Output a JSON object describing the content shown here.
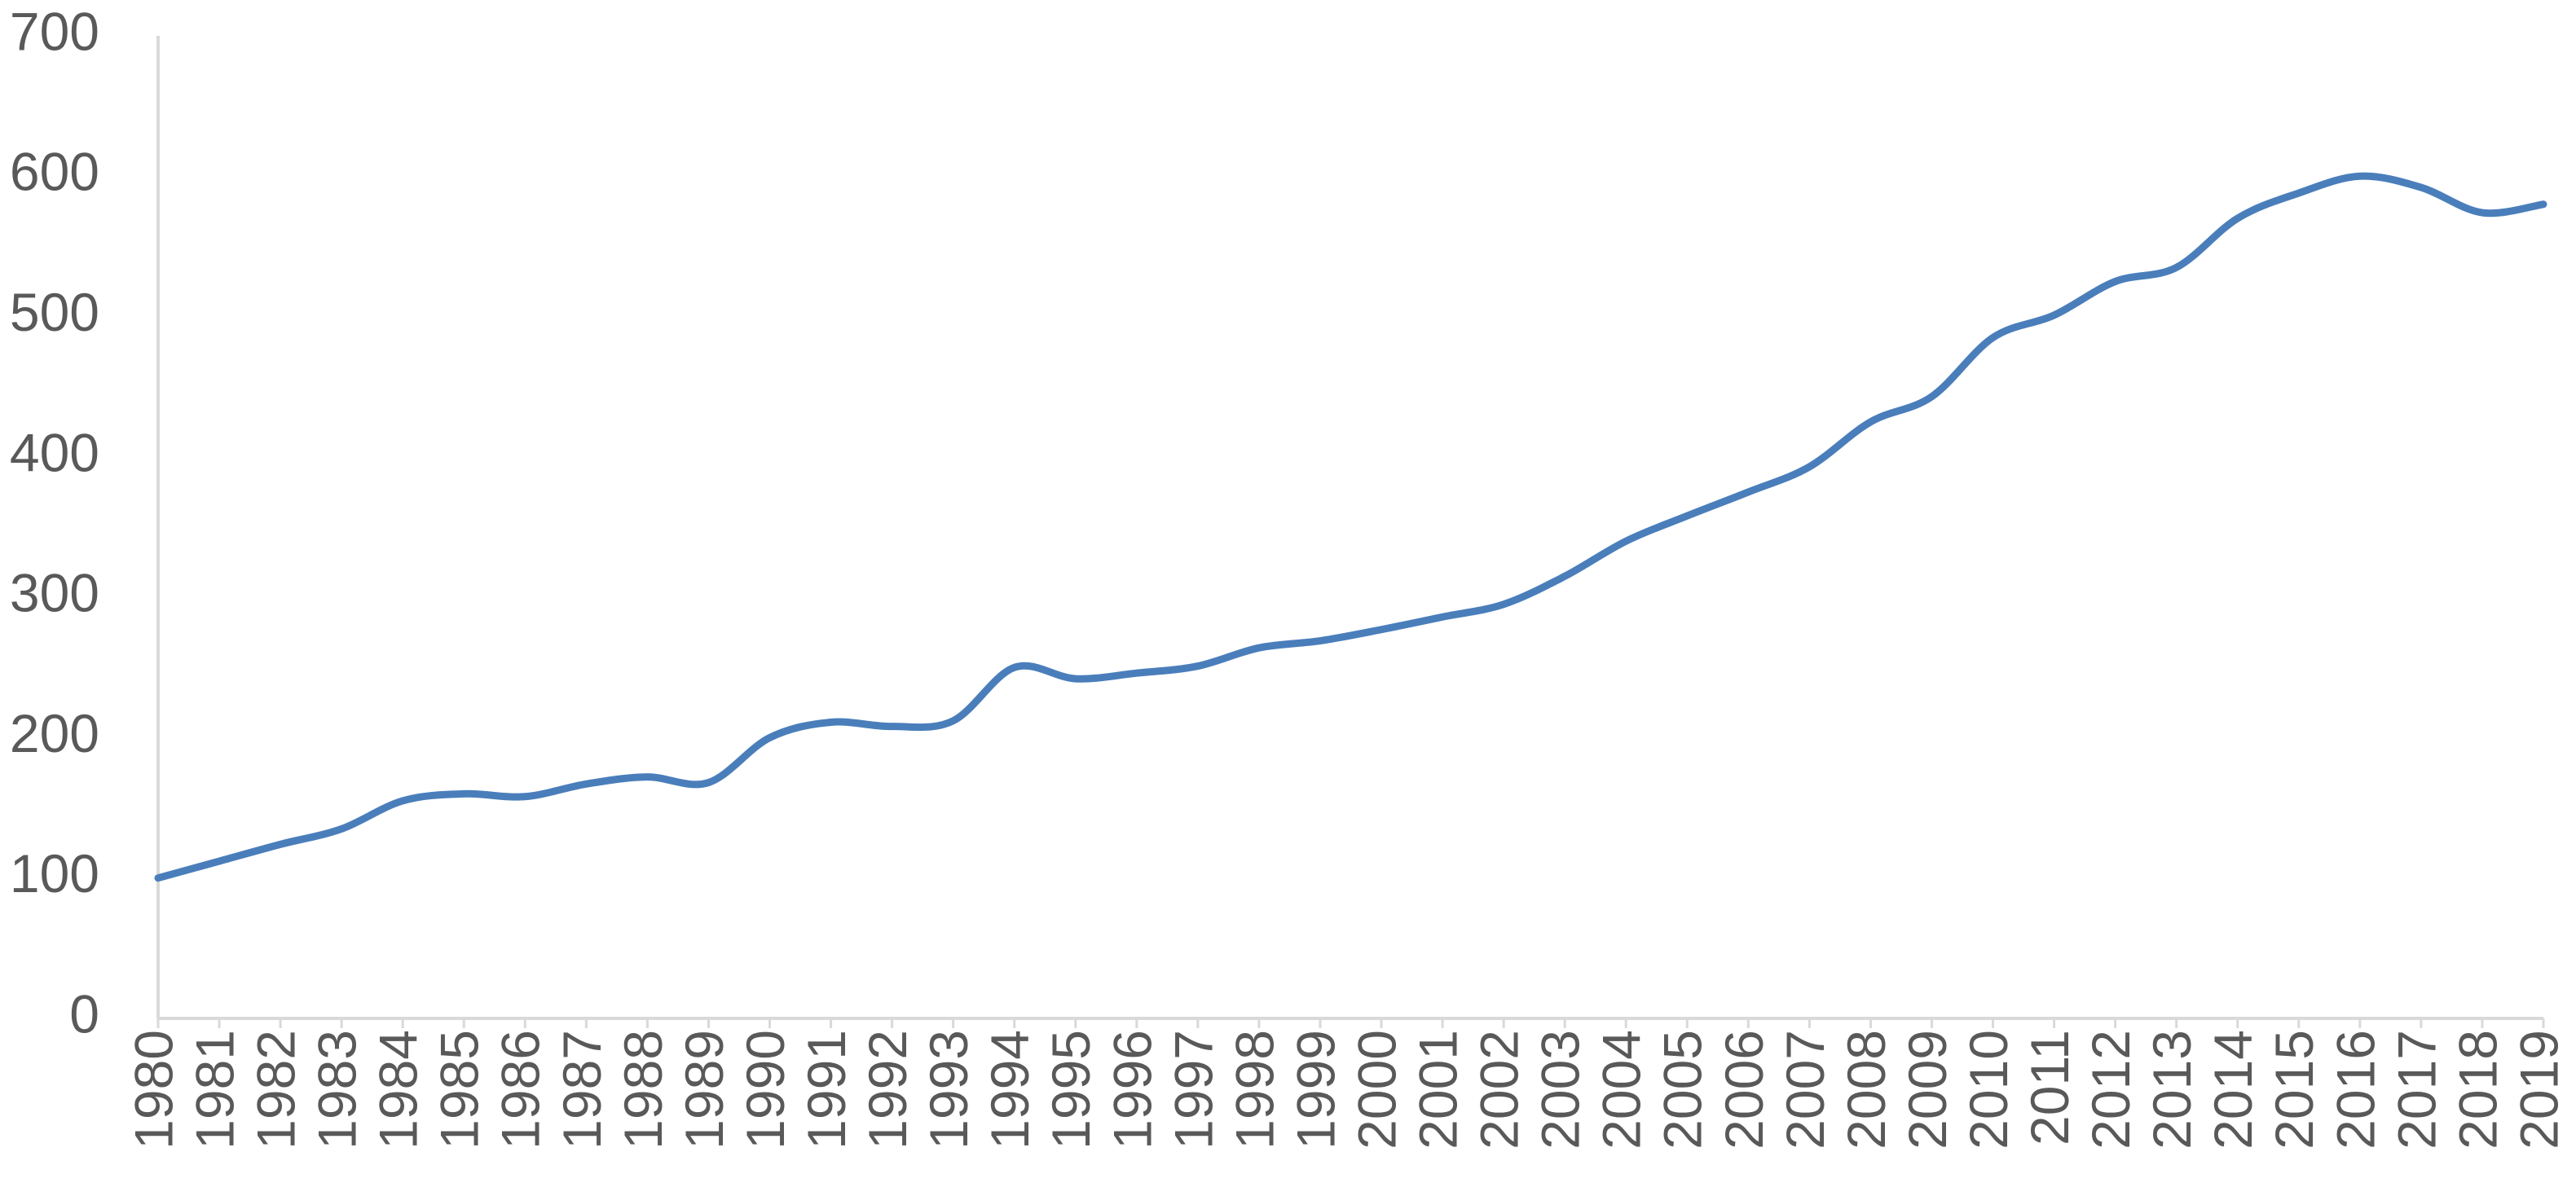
{
  "chart_data": {
    "type": "line",
    "categories": [
      "1980",
      "1981",
      "1982",
      "1983",
      "1984",
      "1985",
      "1986",
      "1987",
      "1988",
      "1989",
      "1990",
      "1991",
      "1992",
      "1993",
      "1994",
      "1995",
      "1996",
      "1997",
      "1998",
      "1999",
      "2000",
      "2001",
      "2002",
      "2003",
      "2004",
      "2005",
      "2006",
      "2007",
      "2008",
      "2009",
      "2010",
      "2011",
      "2012",
      "2013",
      "2014",
      "2015",
      "2016",
      "2017",
      "2018",
      "2019"
    ],
    "values": [
      100,
      112,
      124,
      135,
      155,
      160,
      158,
      167,
      172,
      168,
      200,
      211,
      208,
      212,
      250,
      242,
      246,
      251,
      264,
      269,
      277,
      286,
      295,
      315,
      340,
      358,
      375,
      393,
      425,
      443,
      485,
      501,
      525,
      535,
      570,
      588,
      600,
      592,
      574,
      580
    ],
    "color": "#4a7ebb",
    "ylim": [
      0,
      700
    ],
    "yticks": [
      0,
      100,
      200,
      300,
      400,
      500,
      600,
      700
    ],
    "grid": false
  }
}
